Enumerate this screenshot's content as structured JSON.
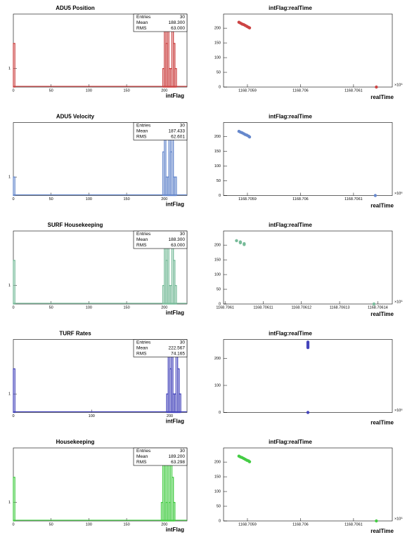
{
  "chart_data": [
    {
      "type": "histogram",
      "title": "ADU5 Position",
      "xlabel": "intFlag",
      "color": "#cc4444",
      "log_y": true,
      "stats": [
        {
          "label": "Entries",
          "value": "30"
        },
        {
          "label": "Mean",
          "value": "188.300"
        },
        {
          "label": "RMS",
          "value": "63.000"
        }
      ],
      "bins": [
        0,
        2,
        198,
        200,
        202,
        204,
        206,
        208,
        210,
        212,
        214,
        216
      ],
      "values": [
        2,
        0,
        1,
        3,
        2,
        3,
        1,
        1,
        3,
        2,
        1
      ],
      "xlim": [
        0,
        230
      ],
      "xticks": [
        0,
        50,
        100,
        150,
        200
      ],
      "ylim": [
        0.6,
        4.5
      ],
      "yticks": [
        1
      ]
    },
    {
      "type": "scatter",
      "title": "intFlag:realTime",
      "xlabel": "realTime",
      "x_exponent": "×10⁶",
      "color": "#cc4444",
      "x": [
        1168.705884,
        1168.705887,
        1168.70589,
        1168.705893,
        1168.705896,
        1168.705899,
        1168.705902,
        1168.705904,
        1168.706143
      ],
      "values": [
        220,
        217,
        214,
        212,
        209,
        206,
        203,
        201,
        0
      ],
      "xlim": [
        1168.705855,
        1168.706173
      ],
      "xticks": [
        1168.7059,
        1168.706,
        1168.7061
      ],
      "ylim": [
        0,
        248
      ],
      "yticks": [
        0,
        50,
        100,
        150,
        200
      ]
    },
    {
      "type": "histogram",
      "title": "ADU5 Velocity",
      "xlabel": "intFlag",
      "color": "#6688cc",
      "log_y": true,
      "stats": [
        {
          "label": "Entries",
          "value": "30"
        },
        {
          "label": "Mean",
          "value": "187.433"
        },
        {
          "label": "RMS",
          "value": "62.601"
        }
      ],
      "bins": [
        0,
        2,
        198,
        200,
        202,
        204,
        206,
        208,
        210,
        212,
        214,
        216
      ],
      "values": [
        1,
        0,
        2,
        3,
        1,
        1,
        3,
        2,
        3,
        1,
        1
      ],
      "xlim": [
        0,
        230
      ],
      "xticks": [
        0,
        50,
        100,
        150,
        200
      ],
      "ylim": [
        0.6,
        4.5
      ],
      "yticks": [
        1
      ]
    },
    {
      "type": "scatter",
      "title": "intFlag:realTime",
      "xlabel": "realTime",
      "x_exponent": "×10⁶",
      "color": "#6688cc",
      "x": [
        1168.705884,
        1168.705887,
        1168.70589,
        1168.705893,
        1168.705896,
        1168.705899,
        1168.705902,
        1168.705904,
        1168.706141
      ],
      "values": [
        218,
        215,
        213,
        210,
        207,
        205,
        202,
        199,
        0
      ],
      "xlim": [
        1168.705855,
        1168.706173
      ],
      "xticks": [
        1168.7059,
        1168.706,
        1168.7061
      ],
      "ylim": [
        0,
        248
      ],
      "yticks": [
        0,
        50,
        100,
        150,
        200
      ]
    },
    {
      "type": "histogram",
      "title": "SURF Housekeeping",
      "xlabel": "intFlag",
      "color": "#77bb99",
      "log_y": true,
      "stats": [
        {
          "label": "Entries",
          "value": "30"
        },
        {
          "label": "Mean",
          "value": "188.300"
        },
        {
          "label": "RMS",
          "value": "63.000"
        }
      ],
      "bins": [
        0,
        2,
        198,
        200,
        202,
        204,
        206,
        208,
        210,
        212,
        214,
        216
      ],
      "values": [
        2,
        0,
        1,
        3,
        2,
        3,
        1,
        1,
        3,
        2,
        1
      ],
      "xlim": [
        0,
        230
      ],
      "xticks": [
        0,
        50,
        100,
        150,
        200
      ],
      "ylim": [
        0.6,
        4.5
      ],
      "yticks": [
        1
      ]
    },
    {
      "type": "scatter",
      "title": "intFlag:realTime",
      "xlabel": "realTime",
      "x_exponent": "×10⁶",
      "color": "#77bb99",
      "x": [
        1168.706103,
        1168.706104,
        1168.706104,
        1168.706105,
        1168.706105,
        1168.706139
      ],
      "values": [
        215,
        211,
        208,
        205,
        202,
        0
      ],
      "xlim": [
        1168.7060996,
        1168.7061438
      ],
      "xticks": [
        1168.7061,
        1168.70611,
        1168.70612,
        1168.70613,
        1168.70614
      ],
      "ylim": [
        0,
        248
      ],
      "yticks": [
        0,
        50,
        100,
        150,
        200
      ]
    },
    {
      "type": "histogram",
      "title": "TURF Rates",
      "xlabel": "intFlag",
      "color": "#4444bb",
      "log_y": true,
      "stats": [
        {
          "label": "Entries",
          "value": "30"
        },
        {
          "label": "Mean",
          "value": "222.567"
        },
        {
          "label": "RMS",
          "value": "74.165"
        }
      ],
      "bins": [
        0,
        2,
        196,
        198,
        200,
        202,
        204,
        206,
        208,
        210,
        212,
        214
      ],
      "values": [
        2,
        0,
        1,
        3,
        2,
        3,
        1,
        1,
        3,
        2,
        1
      ],
      "xlim": [
        0,
        222
      ],
      "xticks": [
        0,
        100,
        200
      ],
      "ylim": [
        0.6,
        4.5
      ],
      "yticks": [
        1
      ]
    },
    {
      "type": "scatter",
      "title": "intFlag:realTime",
      "xlabel": "realTime",
      "x_exponent": "×10⁶",
      "color": "#4444bb",
      "x": [
        1168.7061,
        1168.7061,
        1168.7061,
        1168.7061,
        1168.7061,
        1168.7061
      ],
      "values": [
        260,
        255,
        250,
        245,
        240,
        0
      ],
      "xlim": [
        1168.706,
        1168.7062
      ],
      "xticks": [],
      "ylim": [
        0,
        270
      ],
      "yticks": [
        0,
        100,
        200
      ]
    },
    {
      "type": "histogram",
      "title": "Housekeeping",
      "xlabel": "intFlag",
      "color": "#44cc44",
      "log_y": true,
      "stats": [
        {
          "label": "Entries",
          "value": "30"
        },
        {
          "label": "Mean",
          "value": "189.200"
        },
        {
          "label": "RMS",
          "value": "63.298"
        }
      ],
      "bins": [
        0,
        2,
        196,
        198,
        200,
        202,
        204,
        206,
        208,
        210,
        212,
        214
      ],
      "values": [
        2,
        0,
        1,
        3,
        3,
        1,
        3,
        1,
        3,
        2,
        1
      ],
      "xlim": [
        0,
        230
      ],
      "xticks": [
        0,
        50,
        100,
        150,
        200
      ],
      "ylim": [
        0.6,
        4.5
      ],
      "yticks": [
        1
      ]
    },
    {
      "type": "scatter",
      "title": "intFlag:realTime",
      "xlabel": "realTime",
      "x_exponent": "×10⁶",
      "color": "#44cc44",
      "x": [
        1168.705884,
        1168.705887,
        1168.70589,
        1168.705893,
        1168.705896,
        1168.705899,
        1168.705902,
        1168.705904,
        1168.706143
      ],
      "values": [
        220,
        217,
        215,
        212,
        209,
        206,
        204,
        201,
        0
      ],
      "xlim": [
        1168.705855,
        1168.706173
      ],
      "xticks": [
        1168.7059,
        1168.706,
        1168.7061
      ],
      "ylim": [
        0,
        248
      ],
      "yticks": [
        0,
        50,
        100,
        150,
        200
      ]
    }
  ]
}
